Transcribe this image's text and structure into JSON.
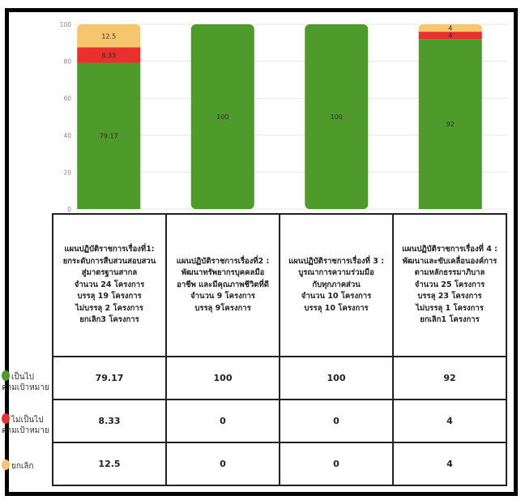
{
  "chart_data": {
    "type": "bar",
    "stacked": true,
    "ylim": [
      0,
      100
    ],
    "y_ticks": [
      0,
      20,
      40,
      60,
      80,
      100
    ],
    "categories": [
      "แผนปฏิบัติราชการเรื่องที่1:\nยกระดับการสืบสวนสอบสวน\nสู่มาตรฐานสากล\nจำนวน 24 โครงการ\nบรรลุ 19 โครงการ\nไม่บรรลุ 2 โครงการ\nยกเลิก3 โครงการ",
      "แผนปฏิบัติราชการเรื่องที่2 :\nพัฒนาทรัพยากรบุคคลมือ\nอาชีพ และมีคุณภาพชีวิตที่ดี\nจำนวน 9 โครงการ\nบรรลุ 9โครงการ",
      "แผนปฏิบัติราชการเรื่องที่ 3 :\nบูรณาการความร่วมมือ\nกับทุกภาคส่วน\nจำนวน 10 โครงการ\nบรรลุ 10 โครงการ",
      "แผนปฏิบัติราชการเรื่องที่ 4 :\nพัฒนาและขับเคลื่อนองค์การ\nตามหลักธรรมาภิบาล\nจำนวน 25 โครงการ\nบรรลุ 23 โครงการ\nไม่บรรลุ 1 โครงการ\nยกเลิก1 โครงการ"
    ],
    "series": [
      {
        "name": "เป็นไป\nตามเป้าหมาย",
        "color": "#4e9a2a",
        "values": [
          79.17,
          100,
          100,
          92
        ],
        "labels": [
          "79.17",
          "100",
          "100",
          "92"
        ]
      },
      {
        "name": "ไม่เป็นไป\nตามเป้าหมาย",
        "color": "#e8302e",
        "values": [
          8.33,
          0,
          0,
          4
        ],
        "labels": [
          "8.33",
          "0",
          "0",
          "4"
        ]
      },
      {
        "name": "ยกเลิก",
        "color": "#f5c66e",
        "values": [
          12.5,
          0,
          0,
          4
        ],
        "labels": [
          "12.5",
          "0",
          "0",
          "4"
        ]
      }
    ],
    "grid": true,
    "legend": "left, as row labels of the table"
  }
}
